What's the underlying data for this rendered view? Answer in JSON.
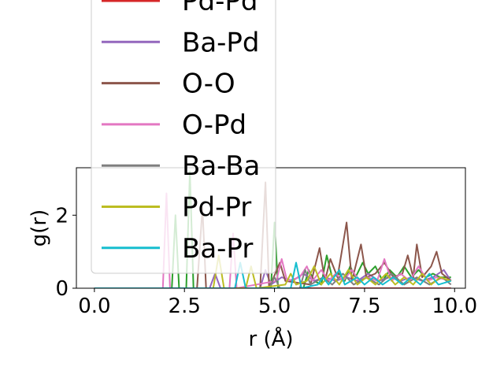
{
  "chart_data": {
    "type": "line",
    "xlabel": "r (Å)",
    "ylabel": "g(r)",
    "xlim": [
      -0.5,
      10.3
    ],
    "ylim": [
      0,
      3.3
    ],
    "xticks": [
      0.0,
      2.5,
      5.0,
      7.5,
      10.0
    ],
    "xtick_labels": [
      "0.0",
      "2.5",
      "5.0",
      "7.5",
      "10.0"
    ],
    "yticks": [
      0,
      2
    ],
    "ytick_labels": [
      "0",
      "2"
    ],
    "grid": false,
    "legend_placement": "upper-left, overflowing above the plot",
    "series": [
      {
        "name": "Pd-Pd",
        "color": "#d62728",
        "points": [
          [
            0,
            0
          ],
          [
            9.9,
            0
          ]
        ]
      },
      {
        "name": "",
        "color": "#2ca02c",
        "points": [
          [
            0,
            0
          ],
          [
            2.15,
            0
          ],
          [
            2.25,
            2.0
          ],
          [
            2.35,
            0
          ],
          [
            2.55,
            0
          ],
          [
            2.65,
            3.2
          ],
          [
            2.75,
            0
          ],
          [
            4.9,
            0
          ],
          [
            5.0,
            1.8
          ],
          [
            5.1,
            0
          ],
          [
            5.8,
            0
          ],
          [
            5.95,
            0.5
          ],
          [
            6.1,
            0.2
          ],
          [
            6.3,
            0.1
          ],
          [
            6.45,
            0.9
          ],
          [
            6.6,
            0.3
          ],
          [
            6.8,
            0.4
          ],
          [
            6.95,
            0.2
          ],
          [
            7.1,
            0.6
          ],
          [
            7.25,
            0.3
          ],
          [
            7.45,
            0.7
          ],
          [
            7.6,
            0.4
          ],
          [
            7.8,
            0.6
          ],
          [
            8.0,
            0.2
          ],
          [
            8.2,
            0.5
          ],
          [
            8.4,
            0.3
          ],
          [
            8.6,
            0.6
          ],
          [
            8.8,
            0.3
          ],
          [
            9.0,
            0.5
          ],
          [
            9.2,
            0.3
          ],
          [
            9.4,
            0.4
          ],
          [
            9.6,
            0.3
          ],
          [
            9.9,
            0.3
          ]
        ]
      },
      {
        "name": "Ba-Pd",
        "color": "#9467bd",
        "points": [
          [
            0,
            0
          ],
          [
            3.2,
            0
          ],
          [
            3.35,
            0.4
          ],
          [
            3.5,
            0
          ],
          [
            4.6,
            0
          ],
          [
            4.75,
            0.5
          ],
          [
            4.9,
            0.1
          ],
          [
            5.2,
            0.3
          ],
          [
            5.5,
            0.2
          ],
          [
            5.8,
            0.4
          ],
          [
            6.1,
            0.2
          ],
          [
            6.4,
            0.3
          ],
          [
            6.7,
            0.2
          ],
          [
            7.0,
            0.3
          ],
          [
            7.3,
            0.2
          ],
          [
            7.6,
            0.4
          ],
          [
            7.9,
            0.2
          ],
          [
            8.2,
            0.3
          ],
          [
            8.5,
            0.2
          ],
          [
            8.8,
            0.3
          ],
          [
            9.1,
            0.2
          ],
          [
            9.4,
            0.3
          ],
          [
            9.7,
            0.5
          ],
          [
            9.9,
            0.2
          ]
        ]
      },
      {
        "name": "O-O",
        "color": "#8c564b",
        "points": [
          [
            0,
            0
          ],
          [
            2.85,
            0
          ],
          [
            3.0,
            2.2
          ],
          [
            3.1,
            0
          ],
          [
            4.6,
            0
          ],
          [
            4.75,
            2.9
          ],
          [
            4.85,
            0
          ],
          [
            5.15,
            0.7
          ],
          [
            5.3,
            0.2
          ],
          [
            6.0,
            0.1
          ],
          [
            6.25,
            1.1
          ],
          [
            6.4,
            0.2
          ],
          [
            6.55,
            0.8
          ],
          [
            6.75,
            0.3
          ],
          [
            7.0,
            1.8
          ],
          [
            7.15,
            0.2
          ],
          [
            7.4,
            1.2
          ],
          [
            7.55,
            0.3
          ],
          [
            7.8,
            0.4
          ],
          [
            8.05,
            0.7
          ],
          [
            8.3,
            0.3
          ],
          [
            8.55,
            0.4
          ],
          [
            8.7,
            0.9
          ],
          [
            8.85,
            0.3
          ],
          [
            8.95,
            1.2
          ],
          [
            9.1,
            0.3
          ],
          [
            9.35,
            0.6
          ],
          [
            9.5,
            1.0
          ],
          [
            9.65,
            0.4
          ],
          [
            9.9,
            0.2
          ]
        ]
      },
      {
        "name": "O-Pd",
        "color": "#e377c2",
        "points": [
          [
            0,
            0
          ],
          [
            1.9,
            0
          ],
          [
            2.0,
            2.6
          ],
          [
            2.1,
            0
          ],
          [
            3.75,
            0
          ],
          [
            3.85,
            1.5
          ],
          [
            3.95,
            0
          ],
          [
            5.05,
            0.2
          ],
          [
            5.2,
            0.8
          ],
          [
            5.35,
            0.2
          ],
          [
            5.7,
            0.3
          ],
          [
            5.9,
            0.6
          ],
          [
            6.05,
            0.2
          ],
          [
            6.3,
            0.5
          ],
          [
            6.5,
            0.2
          ],
          [
            6.7,
            0.4
          ],
          [
            6.9,
            0.2
          ],
          [
            7.15,
            0.5
          ],
          [
            7.35,
            0.2
          ],
          [
            7.6,
            0.3
          ],
          [
            7.85,
            0.2
          ],
          [
            8.05,
            0.8
          ],
          [
            8.25,
            0.2
          ],
          [
            8.5,
            0.4
          ],
          [
            8.75,
            0.2
          ],
          [
            9.0,
            0.6
          ],
          [
            9.25,
            0.2
          ],
          [
            9.5,
            0.3
          ],
          [
            9.9,
            0.2
          ]
        ]
      },
      {
        "name": "Ba-Ba",
        "color": "#7f7f7f",
        "points": [
          [
            0,
            0
          ],
          [
            4.85,
            0
          ],
          [
            5.0,
            0.3
          ],
          [
            5.15,
            0
          ],
          [
            5.7,
            0
          ],
          [
            5.85,
            0.5
          ],
          [
            6.0,
            0.1
          ],
          [
            6.35,
            0.3
          ],
          [
            6.6,
            0.1
          ],
          [
            6.9,
            0.4
          ],
          [
            7.2,
            0.1
          ],
          [
            7.55,
            0.3
          ],
          [
            7.9,
            0.1
          ],
          [
            8.25,
            0.4
          ],
          [
            8.6,
            0.1
          ],
          [
            8.95,
            0.3
          ],
          [
            9.3,
            0.1
          ],
          [
            9.65,
            0.3
          ],
          [
            9.9,
            0.1
          ]
        ]
      },
      {
        "name": "Pd-Pr",
        "color": "#bcbd22",
        "points": [
          [
            0,
            0
          ],
          [
            3.3,
            0
          ],
          [
            3.45,
            0.9
          ],
          [
            3.6,
            0
          ],
          [
            4.2,
            0
          ],
          [
            4.35,
            0.6
          ],
          [
            4.5,
            0
          ],
          [
            5.3,
            0.1
          ],
          [
            5.45,
            0.4
          ],
          [
            5.6,
            0.1
          ],
          [
            5.9,
            0.2
          ],
          [
            6.1,
            0.6
          ],
          [
            6.3,
            0.1
          ],
          [
            6.55,
            0.4
          ],
          [
            6.8,
            0.1
          ],
          [
            7.05,
            0.5
          ],
          [
            7.3,
            0.1
          ],
          [
            7.55,
            0.3
          ],
          [
            7.8,
            0.1
          ],
          [
            8.1,
            0.4
          ],
          [
            8.35,
            0.1
          ],
          [
            8.6,
            0.3
          ],
          [
            8.85,
            0.1
          ],
          [
            9.1,
            0.4
          ],
          [
            9.35,
            0.1
          ],
          [
            9.6,
            0.3
          ],
          [
            9.9,
            0.2
          ]
        ]
      },
      {
        "name": "Ba-Pr",
        "color": "#17becf",
        "points": [
          [
            0,
            0
          ],
          [
            3.9,
            0
          ],
          [
            4.05,
            0.7
          ],
          [
            4.2,
            0
          ],
          [
            5.45,
            0
          ],
          [
            5.6,
            0.7
          ],
          [
            5.75,
            0
          ],
          [
            6.2,
            0.1
          ],
          [
            6.35,
            0.3
          ],
          [
            6.5,
            0.1
          ],
          [
            6.8,
            0.5
          ],
          [
            6.95,
            0.1
          ],
          [
            7.3,
            0.3
          ],
          [
            7.5,
            0.1
          ],
          [
            7.75,
            0.3
          ],
          [
            8.0,
            0.1
          ],
          [
            8.3,
            0.3
          ],
          [
            8.55,
            0.1
          ],
          [
            8.8,
            0.3
          ],
          [
            9.05,
            0.1
          ],
          [
            9.3,
            0.4
          ],
          [
            9.55,
            0.1
          ],
          [
            9.9,
            0.2
          ]
        ]
      }
    ],
    "legend_entries": [
      {
        "label": "Pd-Pd",
        "color": "#d62728"
      },
      {
        "label": "Ba-Pd",
        "color": "#9467bd"
      },
      {
        "label": "O-O",
        "color": "#8c564b"
      },
      {
        "label": "O-Pd",
        "color": "#e377c2"
      },
      {
        "label": "Ba-Ba",
        "color": "#7f7f7f"
      },
      {
        "label": "Pd-Pr",
        "color": "#bcbd22"
      },
      {
        "label": "Ba-Pr",
        "color": "#17becf"
      }
    ]
  }
}
